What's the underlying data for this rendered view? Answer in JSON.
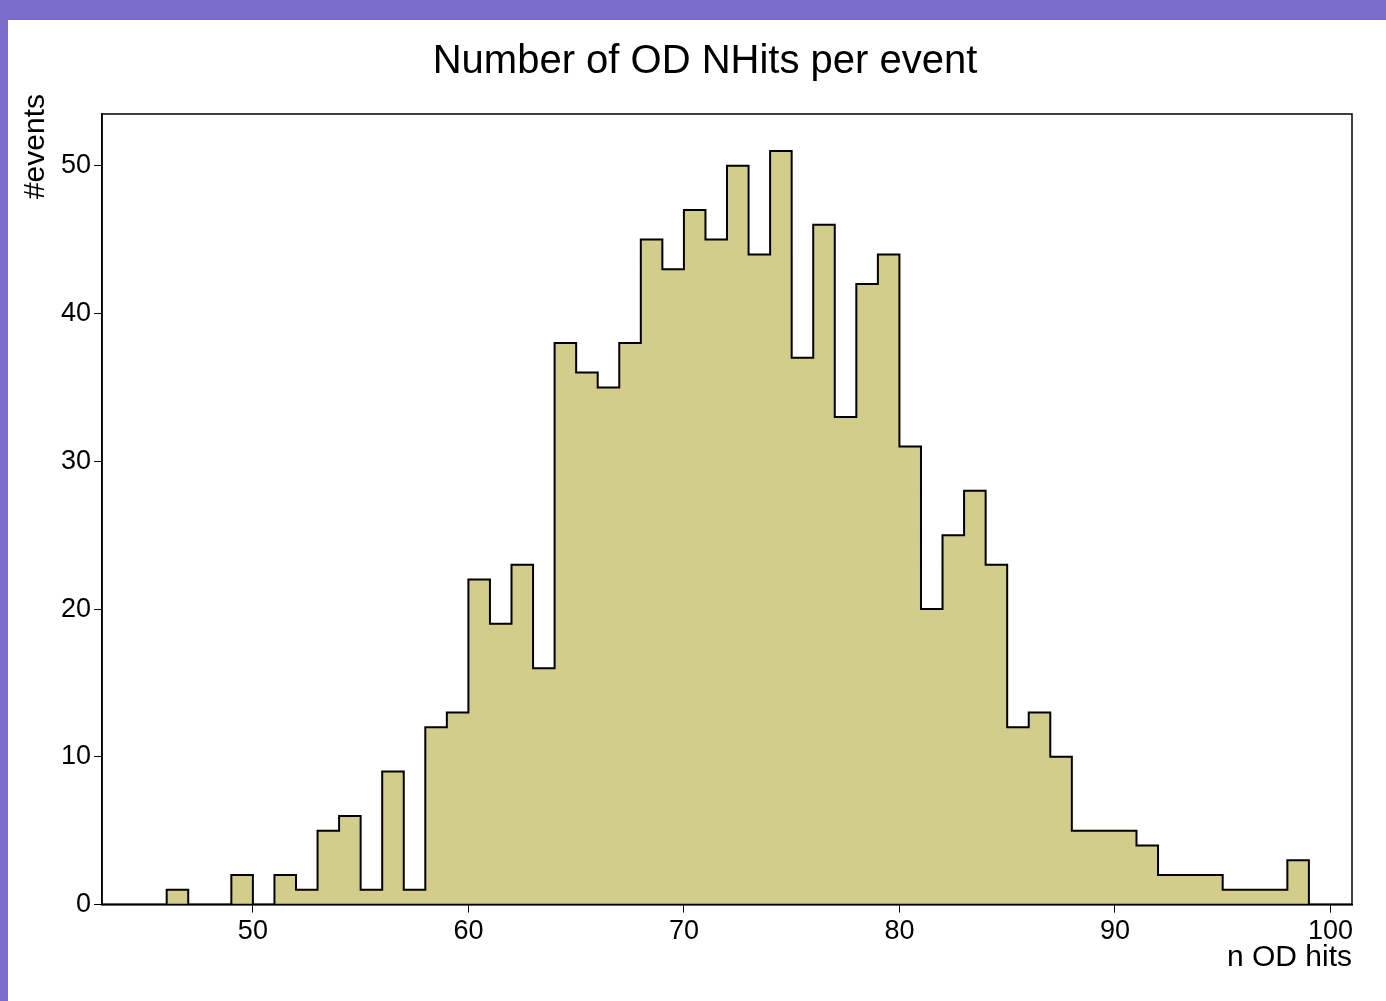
{
  "chart_data": {
    "type": "histogram",
    "title": "Number of OD NHits per event",
    "xlabel": "n OD hits",
    "ylabel": "#events",
    "bins": [
      43,
      44,
      45,
      46,
      47,
      48,
      49,
      50,
      51,
      52,
      53,
      54,
      55,
      56,
      57,
      58,
      59,
      60,
      61,
      62,
      63,
      64,
      65,
      66,
      67,
      68,
      69,
      70,
      71,
      72,
      73,
      74,
      75,
      76,
      77,
      78,
      79,
      80,
      81,
      82,
      83,
      84,
      85,
      86,
      87,
      88,
      89,
      90,
      91,
      92,
      93,
      94,
      95,
      96,
      97,
      98,
      99,
      100,
      101
    ],
    "values": [
      0,
      0,
      0,
      1,
      0,
      0,
      2,
      0,
      2,
      1,
      5,
      6,
      1,
      9,
      1,
      12,
      13,
      22,
      19,
      23,
      16,
      38,
      36,
      35,
      38,
      45,
      43,
      47,
      45,
      50,
      44,
      51,
      37,
      46,
      33,
      42,
      44,
      31,
      20,
      25,
      28,
      23,
      12,
      13,
      10,
      5,
      5,
      5,
      4,
      2,
      2,
      2,
      1,
      1,
      1,
      3,
      0,
      0
    ],
    "color": "#d3cd8b",
    "xlim": [
      43,
      101
    ],
    "xticks": [
      50,
      60,
      70,
      80,
      90,
      100
    ],
    "ylim": [
      0,
      53.5
    ],
    "yticks": [
      0,
      10,
      20,
      30,
      40,
      50
    ],
    "grid": false,
    "legend": false
  }
}
